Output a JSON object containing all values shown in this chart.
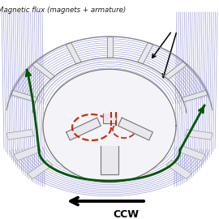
{
  "title": "Magnetic flux (magnets + armature)",
  "ccw_label": "CCW",
  "bg_color": "#ffffff",
  "blue_line": "#7777cc",
  "blue_fill": "#c8c8e8",
  "green_color": "#005500",
  "red_color": "#cc2200",
  "gray_light": "#e8e8ee",
  "gray_mid": "#aaaaaa",
  "gray_dark": "#777777",
  "fig_width": 2.7,
  "fig_height": 2.7,
  "dpi": 100
}
